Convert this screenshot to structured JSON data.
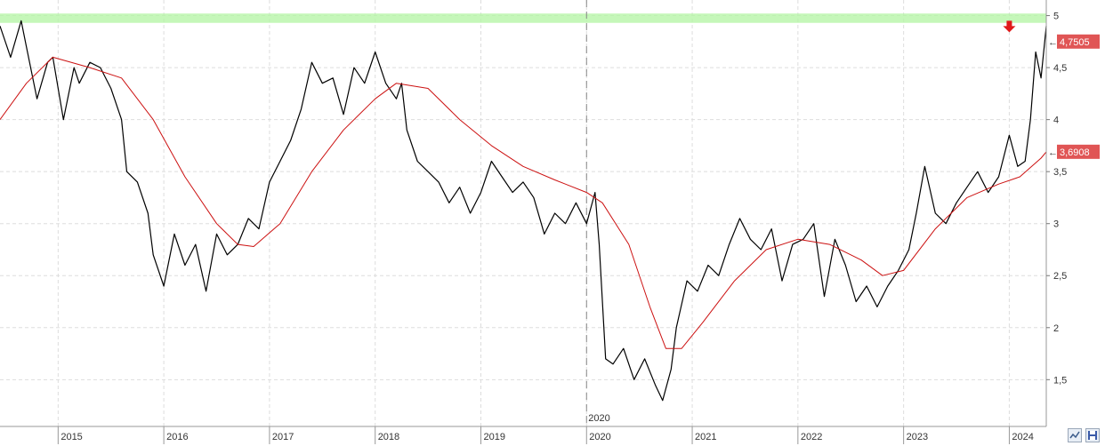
{
  "chart_data": {
    "type": "line",
    "title": "",
    "xlabel": "",
    "ylabel": "",
    "x_range": [
      2014.45,
      2024.35
    ],
    "ylim": [
      1.05,
      5.15
    ],
    "y_ticks": [
      1.5,
      2,
      2.5,
      3,
      3.5,
      4,
      4.5,
      5
    ],
    "y_tick_labels": [
      "1,5",
      "2",
      "2,5",
      "3",
      "3,5",
      "4",
      "4,5",
      "5"
    ],
    "x_ticks": [
      2015,
      2016,
      2017,
      2018,
      2019,
      2020,
      2021,
      2022,
      2023,
      2024
    ],
    "x_tick_labels": [
      "2015",
      "2016",
      "2017",
      "2018",
      "2019",
      "2020",
      "2021",
      "2022",
      "2023",
      "2024"
    ],
    "grid": true,
    "resistance_zone": [
      4.93,
      5.02
    ],
    "marker_year_label": "2020",
    "series": [
      {
        "color": "#000000",
        "x": [
          2014.45,
          2014.55,
          2014.65,
          2014.7,
          2014.8,
          2014.9,
          2014.95,
          2015.05,
          2015.15,
          2015.2,
          2015.3,
          2015.4,
          2015.5,
          2015.6,
          2015.65,
          2015.75,
          2015.85,
          2015.9,
          2016.0,
          2016.1,
          2016.2,
          2016.3,
          2016.4,
          2016.5,
          2016.6,
          2016.7,
          2016.8,
          2016.9,
          2017.0,
          2017.1,
          2017.2,
          2017.3,
          2017.4,
          2017.5,
          2017.6,
          2017.7,
          2017.8,
          2017.9,
          2018.0,
          2018.1,
          2018.2,
          2018.25,
          2018.3,
          2018.4,
          2018.5,
          2018.6,
          2018.7,
          2018.8,
          2018.9,
          2019.0,
          2019.1,
          2019.2,
          2019.3,
          2019.4,
          2019.5,
          2019.6,
          2019.7,
          2019.8,
          2019.9,
          2020.0,
          2020.08,
          2020.12,
          2020.18,
          2020.25,
          2020.35,
          2020.45,
          2020.55,
          2020.65,
          2020.72,
          2020.8,
          2020.85,
          2020.95,
          2021.05,
          2021.15,
          2021.25,
          2021.35,
          2021.45,
          2021.55,
          2021.65,
          2021.75,
          2021.85,
          2021.95,
          2022.05,
          2022.15,
          2022.25,
          2022.35,
          2022.45,
          2022.55,
          2022.65,
          2022.75,
          2022.85,
          2022.95,
          2023.05,
          2023.12,
          2023.2,
          2023.3,
          2023.4,
          2023.5,
          2023.6,
          2023.7,
          2023.8,
          2023.9,
          2024.0,
          2024.08,
          2024.15,
          2024.2,
          2024.25,
          2024.3,
          2024.35
        ],
        "y": [
          4.9,
          4.6,
          4.95,
          4.7,
          4.2,
          4.55,
          4.6,
          4.0,
          4.5,
          4.35,
          4.55,
          4.5,
          4.3,
          4.0,
          3.5,
          3.4,
          3.1,
          2.7,
          2.4,
          2.9,
          2.6,
          2.8,
          2.35,
          2.9,
          2.7,
          2.8,
          3.05,
          2.95,
          3.4,
          3.6,
          3.8,
          4.1,
          4.55,
          4.35,
          4.4,
          4.05,
          4.5,
          4.35,
          4.65,
          4.35,
          4.2,
          4.35,
          3.9,
          3.6,
          3.5,
          3.4,
          3.2,
          3.35,
          3.1,
          3.3,
          3.6,
          3.45,
          3.3,
          3.4,
          3.25,
          2.9,
          3.1,
          3.0,
          3.2,
          3.0,
          3.3,
          2.8,
          1.7,
          1.65,
          1.8,
          1.5,
          1.7,
          1.45,
          1.3,
          1.6,
          2.0,
          2.45,
          2.35,
          2.6,
          2.5,
          2.8,
          3.05,
          2.85,
          2.75,
          2.95,
          2.45,
          2.8,
          2.85,
          3.0,
          2.3,
          2.85,
          2.6,
          2.25,
          2.4,
          2.2,
          2.4,
          2.55,
          2.75,
          3.1,
          3.55,
          3.1,
          3.0,
          3.2,
          3.35,
          3.5,
          3.3,
          3.45,
          3.85,
          3.55,
          3.6,
          4.0,
          4.65,
          4.4,
          4.9
        ]
      },
      {
        "color": "#cc1111",
        "x": [
          2014.45,
          2014.7,
          2014.95,
          2015.3,
          2015.6,
          2015.9,
          2016.2,
          2016.5,
          2016.7,
          2016.85,
          2017.1,
          2017.4,
          2017.7,
          2018.0,
          2018.2,
          2018.5,
          2018.8,
          2019.1,
          2019.4,
          2019.7,
          2020.0,
          2020.15,
          2020.4,
          2020.6,
          2020.75,
          2020.9,
          2021.1,
          2021.4,
          2021.7,
          2022.0,
          2022.3,
          2022.6,
          2022.8,
          2023.0,
          2023.3,
          2023.6,
          2023.9,
          2024.1,
          2024.3,
          2024.35
        ],
        "y": [
          4.0,
          4.35,
          4.6,
          4.5,
          4.4,
          4.0,
          3.45,
          3.0,
          2.8,
          2.78,
          3.0,
          3.5,
          3.9,
          4.2,
          4.35,
          4.3,
          4.0,
          3.75,
          3.55,
          3.42,
          3.3,
          3.2,
          2.8,
          2.2,
          1.8,
          1.8,
          2.05,
          2.45,
          2.75,
          2.85,
          2.8,
          2.65,
          2.5,
          2.55,
          2.95,
          3.25,
          3.38,
          3.45,
          3.63,
          3.69
        ]
      }
    ],
    "price_badges": [
      {
        "label": "4,7505",
        "value": 4.7505,
        "color": "#e05555"
      },
      {
        "label": "3,6908",
        "value": 3.6908,
        "color": "#e05555"
      }
    ]
  },
  "toolbar": {
    "icons": [
      "chart-type-icon",
      "save-icon"
    ]
  }
}
